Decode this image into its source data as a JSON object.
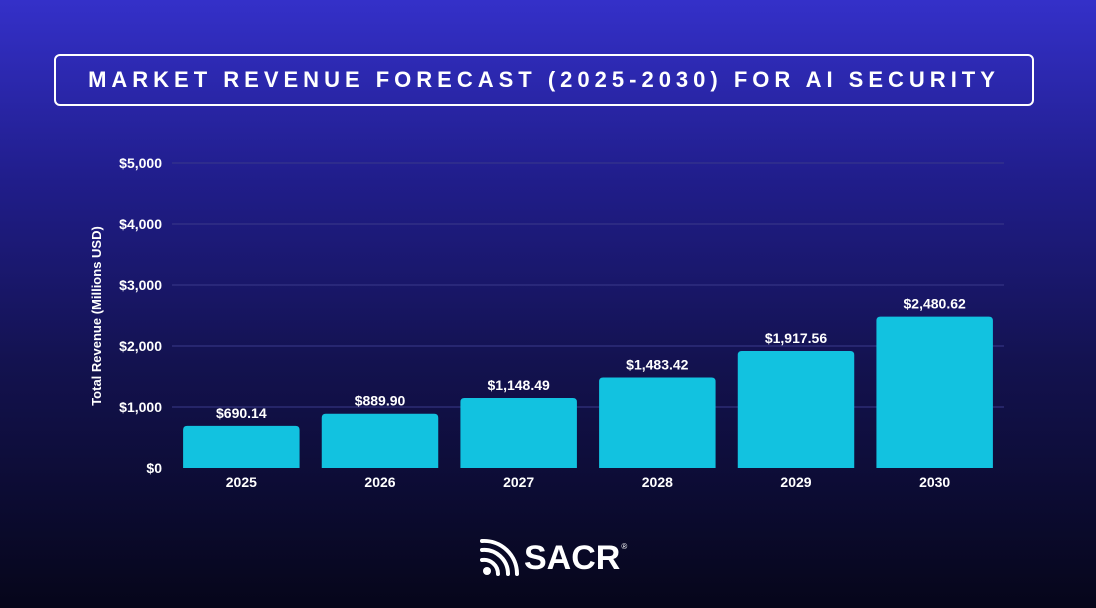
{
  "chart_data": {
    "type": "bar",
    "title": "MARKET REVENUE FORECAST (2025-2030) FOR AI SECURITY",
    "xlabel": "",
    "ylabel": "Total Revenue (Millions USD)",
    "categories": [
      "2025",
      "2026",
      "2027",
      "2028",
      "2029",
      "2030"
    ],
    "values": [
      690.14,
      889.9,
      1148.49,
      1483.42,
      1917.56,
      2480.62
    ],
    "data_labels": [
      "$690.14",
      "$889.90",
      "$1,148.49",
      "$1,483.42",
      "$1,917.56",
      "$2,480.62"
    ],
    "yticks": [
      0,
      1000,
      2000,
      3000,
      4000,
      5000
    ],
    "ytick_labels": [
      "$0",
      "$1,000",
      "$2,000",
      "$3,000",
      "$4,000",
      "$5,000"
    ],
    "ylim": [
      0,
      5000
    ],
    "grid": true,
    "legend": "none",
    "bar_color": "#12c2e0",
    "grid_color": "#3a3a8a"
  },
  "brand": {
    "name": "SACR",
    "registered_mark": "®"
  }
}
